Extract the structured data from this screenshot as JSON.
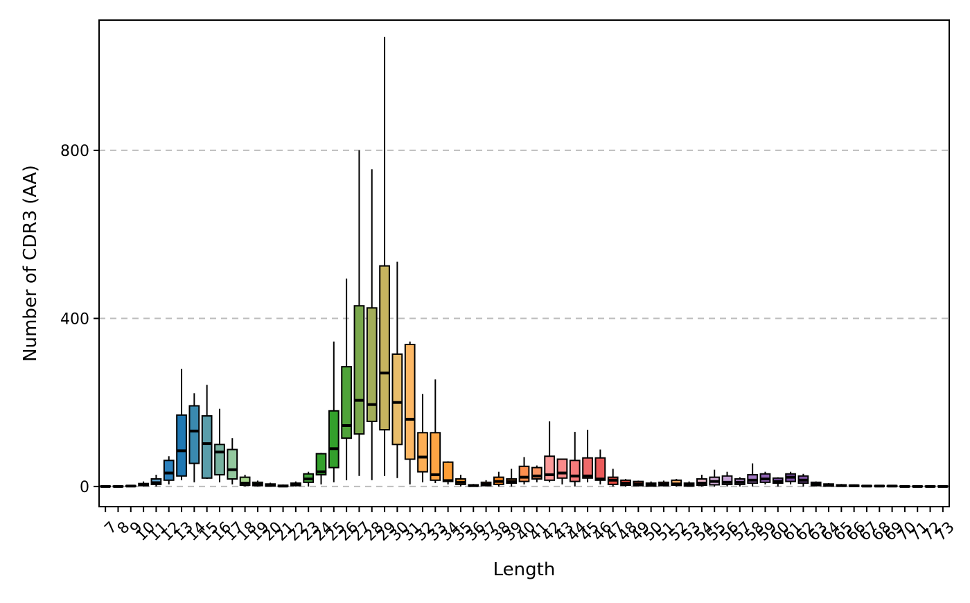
{
  "chart_data": {
    "type": "boxplot",
    "title": "",
    "xlabel": "Length",
    "ylabel": "Number of CDR3 (AA)",
    "ylim": [
      -48,
      1110
    ],
    "yticks": [
      0,
      400,
      800
    ],
    "grid": "horizontal-dashed",
    "legend": "none",
    "categories": [
      "7",
      "8",
      "9",
      "10",
      "11",
      "12",
      "13",
      "14",
      "15",
      "16",
      "17",
      "18",
      "19",
      "20",
      "21",
      "22",
      "23",
      "24",
      "25",
      "26",
      "27",
      "28",
      "29",
      "30",
      "31",
      "32",
      "33",
      "34",
      "35",
      "36",
      "37",
      "38",
      "39",
      "40",
      "41",
      "42",
      "43",
      "44",
      "45",
      "46",
      "47",
      "48",
      "49",
      "50",
      "51",
      "52",
      "53",
      "54",
      "55",
      "56",
      "57",
      "58",
      "59",
      "60",
      "61",
      "62",
      "63",
      "64",
      "65",
      "66",
      "67",
      "68",
      "69",
      "70",
      "71",
      "72",
      "73"
    ],
    "boxes": [
      {
        "min": 0,
        "q1": 0,
        "median": 0,
        "q3": 1,
        "max": 2,
        "color": "#a6cee3"
      },
      {
        "min": 0,
        "q1": 0,
        "median": 0,
        "q3": 1,
        "max": 2,
        "color": "#a6cee3"
      },
      {
        "min": 0,
        "q1": 0,
        "median": 1,
        "q3": 2,
        "max": 3,
        "color": "#a6cee3"
      },
      {
        "min": 0,
        "q1": 2,
        "median": 4,
        "q3": 7,
        "max": 12,
        "color": "#8dbbd9"
      },
      {
        "min": 0,
        "q1": 5,
        "median": 9,
        "q3": 18,
        "max": 28,
        "color": "#5c9ec9"
      },
      {
        "min": 5,
        "q1": 15,
        "median": 32,
        "q3": 62,
        "max": 72,
        "color": "#2c81bd"
      },
      {
        "min": 15,
        "q1": 25,
        "median": 85,
        "q3": 170,
        "max": 280,
        "color": "#1f78b4"
      },
      {
        "min": 10,
        "q1": 55,
        "median": 132,
        "q3": 192,
        "max": 222,
        "color": "#3a8aaf"
      },
      {
        "min": 18,
        "q1": 20,
        "median": 102,
        "q3": 168,
        "max": 242,
        "color": "#5a9eab"
      },
      {
        "min": 10,
        "q1": 28,
        "median": 82,
        "q3": 100,
        "max": 185,
        "color": "#77b19f"
      },
      {
        "min": 5,
        "q1": 18,
        "median": 40,
        "q3": 88,
        "max": 115,
        "color": "#93c89e"
      },
      {
        "min": 0,
        "q1": 3,
        "median": 8,
        "q3": 22,
        "max": 28,
        "color": "#a9d98e"
      },
      {
        "min": 0,
        "q1": 2,
        "median": 5,
        "q3": 10,
        "max": 14,
        "color": "#a6d78a"
      },
      {
        "min": 0,
        "q1": 1,
        "median": 3,
        "q3": 6,
        "max": 9,
        "color": "#8fcb79"
      },
      {
        "min": 0,
        "q1": 0,
        "median": 1,
        "q3": 3,
        "max": 5,
        "color": "#7cbf66"
      },
      {
        "min": 0,
        "q1": 2,
        "median": 4,
        "q3": 8,
        "max": 12,
        "color": "#62b24f"
      },
      {
        "min": 0,
        "q1": 10,
        "median": 18,
        "q3": 30,
        "max": 35,
        "color": "#48a63f"
      },
      {
        "min": 5,
        "q1": 28,
        "median": 35,
        "q3": 78,
        "max": 80,
        "color": "#33a02c"
      },
      {
        "min": 10,
        "q1": 45,
        "median": 90,
        "q3": 180,
        "max": 345,
        "color": "#33a02c"
      },
      {
        "min": 15,
        "q1": 115,
        "median": 145,
        "q3": 285,
        "max": 495,
        "color": "#4fa33a"
      },
      {
        "min": 25,
        "q1": 125,
        "median": 205,
        "q3": 430,
        "max": 800,
        "color": "#7aa84c"
      },
      {
        "min": 15,
        "q1": 155,
        "median": 195,
        "q3": 425,
        "max": 755,
        "color": "#a3ae5a"
      },
      {
        "min": 25,
        "q1": 135,
        "median": 270,
        "q3": 525,
        "max": 1070,
        "color": "#c6b45f"
      },
      {
        "min": 20,
        "q1": 100,
        "median": 200,
        "q3": 315,
        "max": 535,
        "color": "#e8bd6b"
      },
      {
        "min": 5,
        "q1": 65,
        "median": 160,
        "q3": 338,
        "max": 345,
        "color": "#fdb865"
      },
      {
        "min": 10,
        "q1": 35,
        "median": 70,
        "q3": 128,
        "max": 220,
        "color": "#fdae55"
      },
      {
        "min": 8,
        "q1": 15,
        "median": 28,
        "q3": 128,
        "max": 255,
        "color": "#fda544"
      },
      {
        "min": 5,
        "q1": 12,
        "median": 14,
        "q3": 58,
        "max": 60,
        "color": "#fd9e36"
      },
      {
        "min": 0,
        "q1": 5,
        "median": 10,
        "q3": 18,
        "max": 28,
        "color": "#ff9a2b"
      },
      {
        "min": 0,
        "q1": 1,
        "median": 2,
        "q3": 4,
        "max": 6,
        "color": "#ff9522"
      },
      {
        "min": 0,
        "q1": 2,
        "median": 5,
        "q3": 10,
        "max": 15,
        "color": "#ff8f1e"
      },
      {
        "min": 0,
        "q1": 5,
        "median": 12,
        "q3": 22,
        "max": 35,
        "color": "#ff8a20"
      },
      {
        "min": 0,
        "q1": 8,
        "median": 12,
        "q3": 18,
        "max": 42,
        "color": "#fd8b3a"
      },
      {
        "min": 5,
        "q1": 12,
        "median": 22,
        "q3": 48,
        "max": 70,
        "color": "#fd8f4e"
      },
      {
        "min": 10,
        "q1": 18,
        "median": 25,
        "q3": 45,
        "max": 50,
        "color": "#fb9462"
      },
      {
        "min": 10,
        "q1": 15,
        "median": 28,
        "q3": 72,
        "max": 155,
        "color": "#fb9a99"
      },
      {
        "min": 5,
        "q1": 20,
        "median": 32,
        "q3": 65,
        "max": 65,
        "color": "#f98a8a"
      },
      {
        "min": 0,
        "q1": 12,
        "median": 25,
        "q3": 62,
        "max": 130,
        "color": "#f47a7a"
      },
      {
        "min": 10,
        "q1": 20,
        "median": 25,
        "q3": 68,
        "max": 135,
        "color": "#ef6a6a"
      },
      {
        "min": 5,
        "q1": 15,
        "median": 18,
        "q3": 68,
        "max": 88,
        "color": "#ea5a5a"
      },
      {
        "min": 0,
        "q1": 5,
        "median": 15,
        "q3": 22,
        "max": 42,
        "color": "#e34a3e"
      },
      {
        "min": 0,
        "q1": 3,
        "median": 8,
        "q3": 15,
        "max": 18,
        "color": "#e54b3a"
      },
      {
        "min": 0,
        "q1": 2,
        "median": 6,
        "q3": 12,
        "max": 14,
        "color": "#ed5d3b"
      },
      {
        "min": 0,
        "q1": 1,
        "median": 4,
        "q3": 8,
        "max": 12,
        "color": "#f27841"
      },
      {
        "min": 0,
        "q1": 2,
        "median": 5,
        "q3": 10,
        "max": 14,
        "color": "#f6924d"
      },
      {
        "min": 0,
        "q1": 3,
        "median": 6,
        "q3": 15,
        "max": 18,
        "color": "#f8aa64"
      },
      {
        "min": 0,
        "q1": 1,
        "median": 4,
        "q3": 8,
        "max": 12,
        "color": "#f9bb78"
      },
      {
        "min": 0,
        "q1": 3,
        "median": 8,
        "q3": 18,
        "max": 28,
        "color": "#e6b9c9"
      },
      {
        "min": 0,
        "q1": 4,
        "median": 12,
        "q3": 22,
        "max": 40,
        "color": "#d3aed8"
      },
      {
        "min": 0,
        "q1": 5,
        "median": 10,
        "q3": 25,
        "max": 35,
        "color": "#c29fd2"
      },
      {
        "min": 0,
        "q1": 5,
        "median": 10,
        "q3": 18,
        "max": 22,
        "color": "#b28bca"
      },
      {
        "min": 0,
        "q1": 8,
        "median": 15,
        "q3": 28,
        "max": 55,
        "color": "#a279c1"
      },
      {
        "min": 5,
        "q1": 10,
        "median": 18,
        "q3": 30,
        "max": 35,
        "color": "#8f62b2"
      },
      {
        "min": 0,
        "q1": 8,
        "median": 12,
        "q3": 20,
        "max": 22,
        "color": "#7e52a6"
      },
      {
        "min": 5,
        "q1": 12,
        "median": 22,
        "q3": 30,
        "max": 35,
        "color": "#7b4fa3"
      },
      {
        "min": 0,
        "q1": 8,
        "median": 15,
        "q3": 25,
        "max": 30,
        "color": "#7d52a1"
      },
      {
        "min": 0,
        "q1": 2,
        "median": 5,
        "q3": 10,
        "max": 12,
        "color": "#8a6499"
      },
      {
        "min": 0,
        "q1": 1,
        "median": 3,
        "q3": 6,
        "max": 8,
        "color": "#9b7b9a"
      },
      {
        "min": 0,
        "q1": 1,
        "median": 2,
        "q3": 4,
        "max": 6,
        "color": "#b094a0"
      },
      {
        "min": 0,
        "q1": 0,
        "median": 2,
        "q3": 3,
        "max": 5,
        "color": "#c4aca5"
      },
      {
        "min": 0,
        "q1": 0,
        "median": 1,
        "q3": 2,
        "max": 3,
        "color": "#d6c4a8"
      },
      {
        "min": 0,
        "q1": 0,
        "median": 1,
        "q3": 2,
        "max": 3,
        "color": "#e3d8a5"
      },
      {
        "min": 0,
        "q1": 0,
        "median": 1,
        "q3": 2,
        "max": 3,
        "color": "#ede79f"
      },
      {
        "min": 0,
        "q1": 0,
        "median": 0,
        "q3": 1,
        "max": 2,
        "color": "#f4f09c"
      },
      {
        "min": 0,
        "q1": 0,
        "median": 0,
        "q3": 1,
        "max": 2,
        "color": "#f8f59b"
      },
      {
        "min": 0,
        "q1": 0,
        "median": 0,
        "q3": 1,
        "max": 2,
        "color": "#fbf89a"
      },
      {
        "min": 0,
        "q1": 0,
        "median": 0,
        "q3": 1,
        "max": 2,
        "color": "#ffff99"
      }
    ]
  }
}
